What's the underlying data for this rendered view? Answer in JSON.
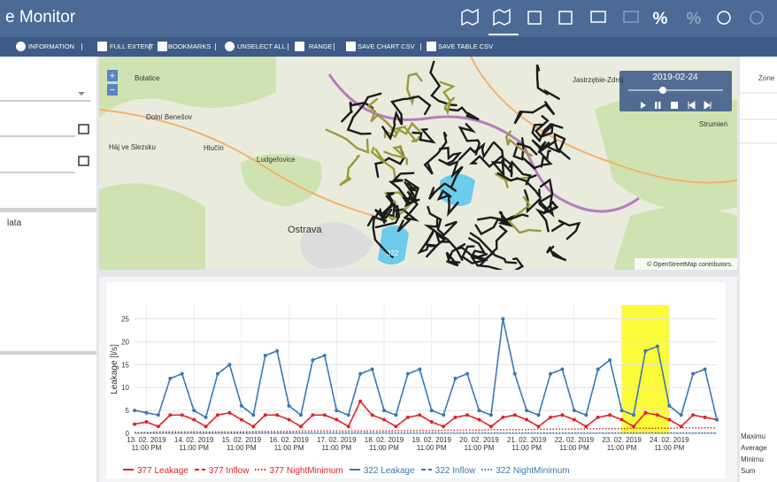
{
  "header": {
    "title": "e Monitor",
    "percent_icons": [
      "%",
      "%"
    ]
  },
  "toolbar": [
    "INFORMATION",
    "FULL EXTENT",
    "BOOKMARKS",
    "UNSELECT ALL",
    "RANGE",
    "SAVE CHART CSV",
    "SAVE TABLE CSV"
  ],
  "left_panel": {
    "text": "lata"
  },
  "right_panel": {
    "header": "Zone",
    "stats": [
      "Maximu",
      "Average",
      "Minimu",
      "Sum"
    ]
  },
  "map": {
    "date": "2019-02-24",
    "zoom": [
      "+",
      "−"
    ],
    "attribution": "© OpenStreetMap contributors.",
    "labels": [
      "Bolatice",
      "Dolní Benešov",
      "Háj ve Slezsku",
      "Hlučín",
      "Ludgeřovice",
      "Ostrava",
      "Jastrzębie-Zdrój",
      "Strumień",
      "322"
    ]
  },
  "chart_data": {
    "type": "line",
    "y_label": "Leakage [l/s]",
    "categories": [
      null,
      "13. 02. 2019 11:00 PM",
      null,
      null,
      null,
      "14. 02. 2019 11:00 PM",
      null,
      null,
      null,
      "15. 02. 2019 11:00 PM",
      null,
      null,
      null,
      "16. 02. 2019 11:00 PM",
      null,
      null,
      null,
      "17. 02. 2019 11:00 PM",
      null,
      null,
      null,
      "18. 02. 2019 11:00 PM",
      null,
      null,
      null,
      "19. 02. 2019 11:00 PM",
      null,
      null,
      null,
      "20. 02. 2019 11:00 PM",
      null,
      null,
      null,
      "21. 02. 2019 11:00 PM",
      null,
      null,
      null,
      "22. 02. 2019 11:00 PM",
      null,
      null,
      null,
      "23. 02. 2019 11:00 PM",
      null,
      null,
      null,
      "24. 02. 2019 11:00 PM",
      null,
      null,
      null,
      null
    ],
    "ylim": [
      0,
      28
    ],
    "yticks": [
      0,
      5,
      10,
      15,
      20,
      25
    ],
    "grid": true,
    "highlight": {
      "color": "#fbfb3a",
      "from": "23. 02. 2019 11:00 PM",
      "to": "24. 02. 2019 11:00 PM"
    },
    "series": [
      {
        "name": "377 Leakage",
        "color": "#e0242a",
        "style": "solid",
        "markers": true,
        "values": [
          2,
          2.5,
          1.5,
          4,
          4,
          3,
          1.5,
          4,
          4.5,
          3,
          1.5,
          4,
          4,
          3,
          1.5,
          4,
          4,
          3,
          1.5,
          7,
          4,
          3,
          1.5,
          3.5,
          4,
          2.5,
          1.5,
          3.5,
          4,
          3,
          1.5,
          3.5,
          4,
          3,
          1.5,
          3.5,
          4,
          3,
          1.5,
          3.5,
          4,
          3,
          1.5,
          4.5,
          4,
          3,
          1.5,
          4,
          3.5,
          3
        ]
      },
      {
        "name": "377 Inflow",
        "color": "#e0242a",
        "style": "dashed",
        "markers": false,
        "values": [
          2,
          2.5,
          1.5,
          4,
          4,
          3,
          1.5,
          4,
          4.5,
          3,
          1.5,
          4,
          4,
          3,
          1.5,
          4,
          4,
          3,
          1.5,
          7,
          4,
          3,
          1.5,
          3.5,
          4,
          2.5,
          1.5,
          3.5,
          4,
          3,
          1.5,
          3.5,
          4,
          3,
          1.5,
          3.5,
          4,
          3,
          1.5,
          3.5,
          4,
          3,
          1.5,
          4.5,
          4,
          3,
          1.5,
          4,
          3.5,
          3
        ]
      },
      {
        "name": "377 NightMinimum",
        "color": "#e0242a",
        "style": "dotted",
        "markers": false,
        "values": [
          0.2,
          0.2,
          0.3,
          0.3,
          0.3,
          0.3,
          0.3,
          0.3,
          0.3,
          0.3,
          0.4,
          0.4,
          0.4,
          0.4,
          0.5,
          0.5,
          0.5,
          0.5,
          0.5,
          0.5,
          0.5,
          0.5,
          0.6,
          0.6,
          0.6,
          0.6,
          0.7,
          0.7,
          0.7,
          0.7,
          0.8,
          0.8,
          0.8,
          0.8,
          0.9,
          0.9,
          0.9,
          0.9,
          1,
          1,
          1,
          1,
          1.1,
          1.1,
          1.1,
          1.1,
          1.2,
          1.2,
          1.2,
          1.2
        ]
      },
      {
        "name": "322 Leakage",
        "color": "#3a78b4",
        "style": "solid",
        "markers": true,
        "values": [
          5,
          4.5,
          4,
          12,
          13,
          5,
          3.5,
          13,
          15,
          6,
          4,
          17,
          18,
          6,
          4,
          16,
          17,
          5,
          4,
          13,
          14,
          5,
          4,
          13,
          14,
          5,
          4,
          12,
          13,
          5,
          4,
          25,
          13,
          5,
          4,
          13,
          14,
          5,
          4,
          14,
          16,
          5,
          4,
          18,
          19,
          6,
          4,
          13,
          14,
          3
        ]
      },
      {
        "name": "322 Inflow",
        "color": "#3a78b4",
        "style": "dashed",
        "markers": false,
        "values": [
          5,
          4.5,
          4,
          12,
          13,
          5,
          3.5,
          13,
          15,
          6,
          4,
          17,
          18,
          6,
          4,
          16,
          17,
          5,
          4,
          13,
          14,
          5,
          4,
          13,
          14,
          5,
          4,
          12,
          13,
          5,
          4,
          25,
          13,
          5,
          4,
          13,
          14,
          5,
          4,
          14,
          16,
          5,
          4,
          18,
          19,
          6,
          4,
          13,
          14,
          3
        ]
      },
      {
        "name": "322 NightMinimum",
        "color": "#3a78b4",
        "style": "dotted",
        "markers": false,
        "values": [
          0.1,
          0.1,
          0.1,
          0.1,
          0.1,
          0.1,
          0.1,
          0.1,
          0.1,
          0.1,
          0.1,
          0.1,
          0.1,
          0.1,
          0.1,
          0.1,
          0.1,
          0.1,
          0.1,
          0.1,
          0.1,
          0.1,
          0.1,
          0.1,
          0.1,
          0.1,
          0.1,
          0.1,
          0.1,
          0.1,
          0.1,
          0.1,
          0.1,
          0.1,
          0.1,
          0.1,
          0.1,
          0.1,
          0.1,
          0.1,
          0.1,
          0.1,
          0.1,
          0.1,
          0.1,
          0.1,
          0.1,
          0.1,
          0.1,
          0.1
        ]
      }
    ]
  }
}
